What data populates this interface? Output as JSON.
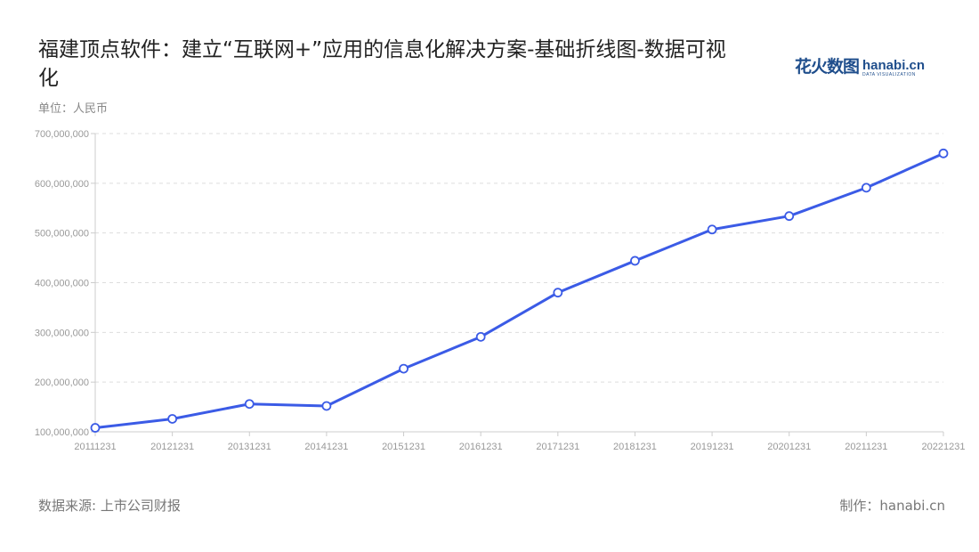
{
  "title": "福建顶点软件：建立“互联网+”应用的信息化解决方案-基础折线图-数据可视化",
  "logo": {
    "cn": "花火数图",
    "en": "hanabi.cn",
    "tagline": "DATA VISUALIZATION"
  },
  "footer": {
    "source": "数据来源: 上市公司财报",
    "credit": "制作：hanabi.cn"
  },
  "chart_data": {
    "type": "line",
    "title": "福建顶点软件：建立“互联网+”应用的信息化解决方案-基础折线图-数据可视化",
    "ylabel": "单位：人民币",
    "xlabel": "",
    "categories": [
      "20111231",
      "20121231",
      "20131231",
      "20141231",
      "20151231",
      "20161231",
      "20171231",
      "20181231",
      "20191231",
      "20201231",
      "20211231",
      "20221231"
    ],
    "values": [
      108000000,
      126000000,
      156000000,
      152000000,
      227000000,
      291000000,
      380000000,
      444000000,
      507000000,
      534000000,
      591000000,
      660000000
    ],
    "ylim": [
      100000000,
      700000000
    ],
    "yticks": [
      "100,000,000",
      "200,000,000",
      "300,000,000",
      "400,000,000",
      "500,000,000",
      "600,000,000",
      "700,000,000"
    ],
    "grid": true,
    "line_color": "#3b5be6"
  }
}
